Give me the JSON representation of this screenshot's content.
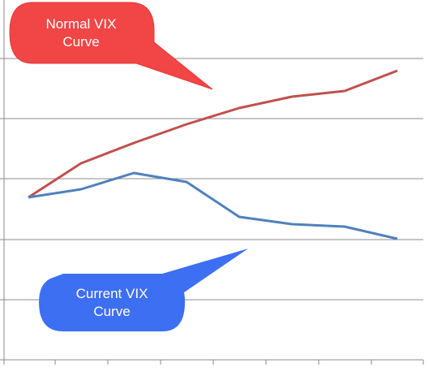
{
  "chart_data": {
    "type": "line",
    "x": [
      1,
      2,
      3,
      4,
      5,
      6,
      7,
      8
    ],
    "series": [
      {
        "name": "Normal VIX Curve",
        "color": "#c0504d",
        "values": [
          18.4,
          21.2,
          22.5,
          23.6,
          24.5,
          25.2,
          25.6,
          27.0
        ]
      },
      {
        "name": "Current VIX Curve",
        "color": "#4f81bd",
        "values": [
          18.4,
          19.0,
          19.8,
          19.2,
          16.9,
          16.4,
          16.2,
          15.5
        ]
      }
    ],
    "grid": true,
    "xlabel": "",
    "ylabel": ""
  },
  "callouts": {
    "normal": {
      "line1": "Normal VIX",
      "line2": "Curve",
      "color": "#f24545"
    },
    "current": {
      "line1": "Current VIX",
      "line2": "Curve",
      "color": "#3d6ff2"
    }
  }
}
